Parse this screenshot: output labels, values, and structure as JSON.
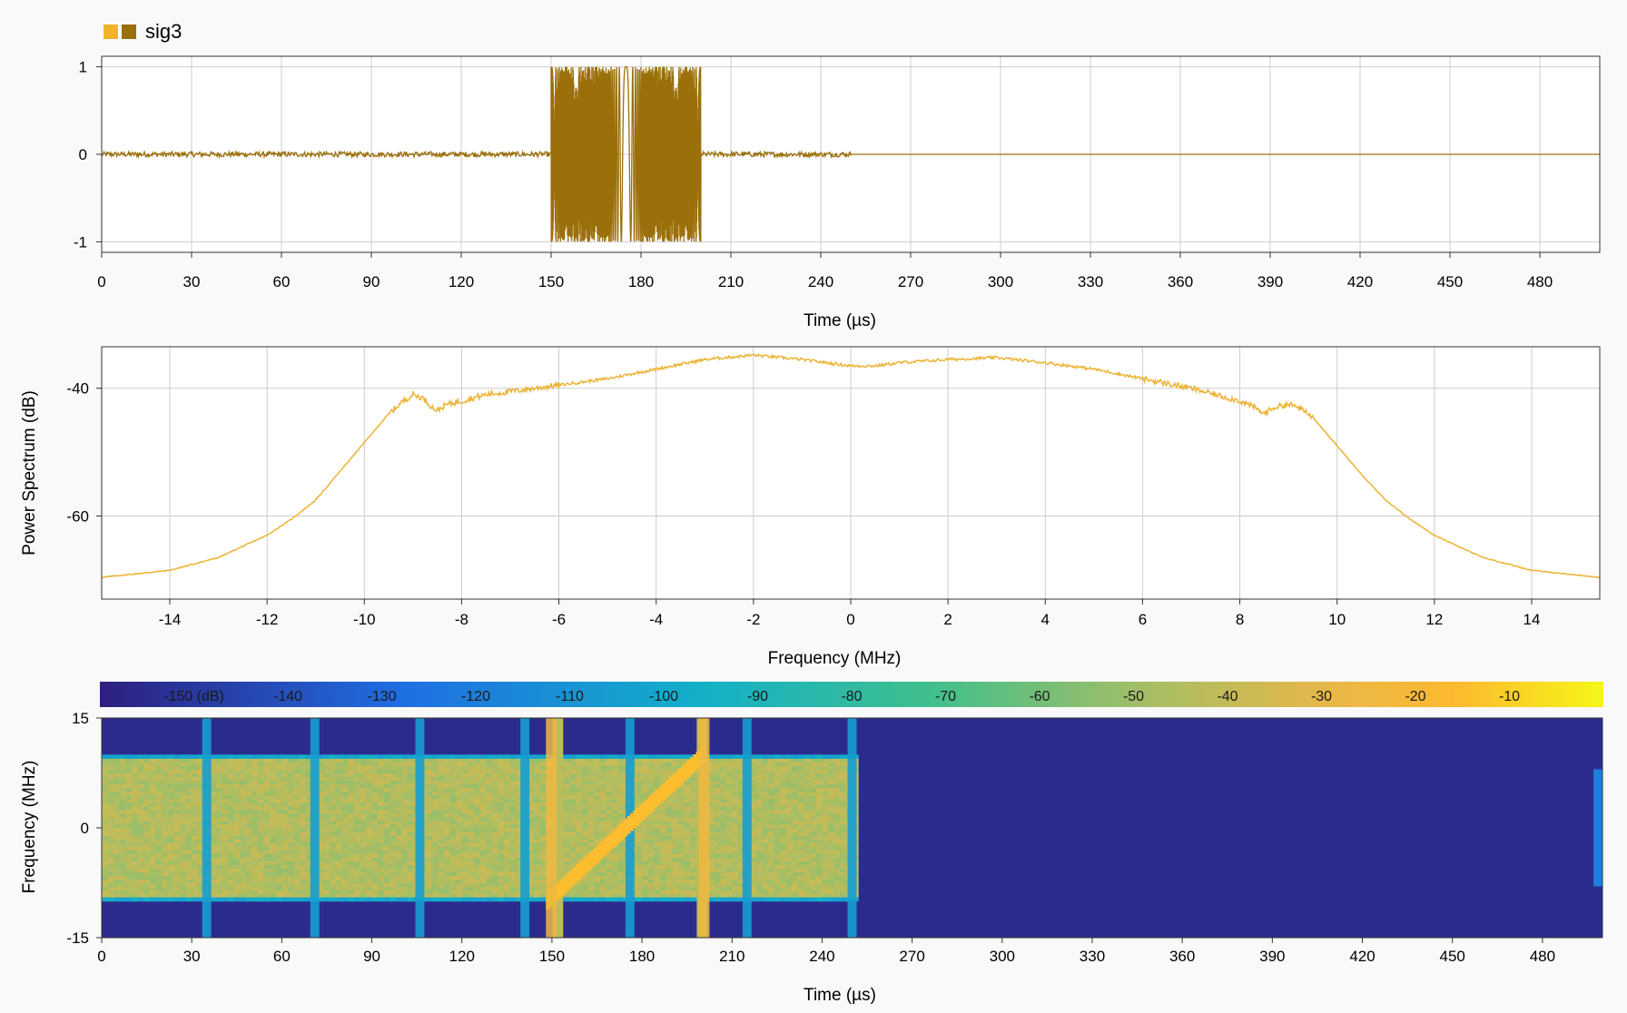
{
  "legend": {
    "label": "sig3",
    "colors": [
      "#f0b429",
      "#9b6f0a"
    ]
  },
  "colors": {
    "grid": "#cccccc",
    "signal": "#9b6f0a",
    "spectrum": "#ecb334",
    "background": "#f9f9f9"
  },
  "chart_data": [
    {
      "type": "line",
      "title": "",
      "xlabel": "Time (µs)",
      "ylabel": "",
      "xlim": [
        0,
        500
      ],
      "ylim": [
        -1.12,
        1.12
      ],
      "xticks": [
        0,
        30,
        60,
        90,
        120,
        150,
        180,
        210,
        240,
        270,
        300,
        330,
        360,
        390,
        420,
        450,
        480
      ],
      "yticks": [
        -1,
        0,
        1
      ],
      "grid": true,
      "series": [
        {
          "name": "sig3",
          "segments": [
            {
              "x": [
                0,
                150
              ],
              "kind": "noise",
              "amplitude": 0.03
            },
            {
              "x": [
                150,
                200
              ],
              "kind": "chirp",
              "amplitude": 1.0,
              "freq_start_mhz": -10,
              "freq_end_mhz": 10
            },
            {
              "x": [
                200,
                250
              ],
              "kind": "noise",
              "amplitude": 0.03
            },
            {
              "x": [
                250,
                500
              ],
              "kind": "flat",
              "value": 0
            }
          ]
        }
      ]
    },
    {
      "type": "line",
      "title": "",
      "xlabel": "Frequency (MHz)",
      "ylabel": "Power Spectrum (dB)",
      "xlim": [
        -15.4,
        15.4
      ],
      "ylim": [
        -73,
        -33.5
      ],
      "xticks": [
        -14,
        -12,
        -10,
        -8,
        -6,
        -4,
        -2,
        0,
        2,
        4,
        6,
        8,
        10,
        12,
        14
      ],
      "yticks": [
        -60,
        -40
      ],
      "grid": true,
      "series": [
        {
          "name": "sig3",
          "x": [
            -15.4,
            -14,
            -13,
            -12,
            -11.5,
            -11,
            -10.5,
            -10,
            -9.5,
            -9.2,
            -9,
            -8.8,
            -8.6,
            -8.5,
            -8.3,
            -8,
            -7.5,
            -7,
            -6,
            -5,
            -4,
            -3,
            -2,
            -1,
            0,
            0.5,
            1,
            2,
            3,
            4,
            5,
            6,
            7,
            7.5,
            8,
            8.3,
            8.5,
            8.7,
            9,
            9.2,
            9.5,
            10,
            10.5,
            11,
            11.5,
            12,
            13,
            14,
            15.4
          ],
          "values": [
            -69.6,
            -68.5,
            -66.5,
            -63,
            -60.5,
            -57.5,
            -53,
            -48.5,
            -44,
            -42,
            -41,
            -41.5,
            -43,
            -43.5,
            -42.5,
            -42,
            -41,
            -40.5,
            -39.5,
            -38.5,
            -37,
            -35.5,
            -34.8,
            -35.5,
            -36.5,
            -36.5,
            -36,
            -35.5,
            -35.2,
            -36,
            -37,
            -38.5,
            -40,
            -41,
            -42,
            -43,
            -44,
            -43,
            -42.5,
            -43,
            -44.5,
            -49,
            -53.5,
            -57.5,
            -60.5,
            -63,
            -66.5,
            -68.5,
            -69.6
          ]
        }
      ]
    },
    {
      "type": "heatmap",
      "title": "",
      "xlabel": "Time (µs)",
      "ylabel": "Frequency (MHz)",
      "xlim": [
        0,
        500
      ],
      "ylim": [
        -15,
        15
      ],
      "xticks": [
        0,
        30,
        60,
        90,
        120,
        150,
        180,
        210,
        240,
        270,
        300,
        330,
        360,
        390,
        420,
        450,
        480
      ],
      "yticks": [
        -15,
        0,
        15
      ],
      "colorbar": {
        "range": [
          -160,
          0
        ],
        "ticks": [
          -150,
          -140,
          -130,
          -120,
          -110,
          -100,
          -90,
          -80,
          -70,
          -60,
          -50,
          -40,
          -30,
          -20,
          -10
        ],
        "unit": "(dB)"
      },
      "regions": {
        "occupied_time": [
          0,
          252
        ],
        "occupied_band_mhz": [
          -9.5,
          9.5
        ],
        "occupied_level_db": -45,
        "empty_level_db": -155,
        "chirp": {
          "t": [
            148,
            200
          ],
          "f_mhz": [
            -10,
            10
          ],
          "level_db": -15
        },
        "bursts_t": [
          35,
          71,
          106,
          141,
          152,
          176,
          200,
          215,
          250
        ]
      }
    }
  ]
}
